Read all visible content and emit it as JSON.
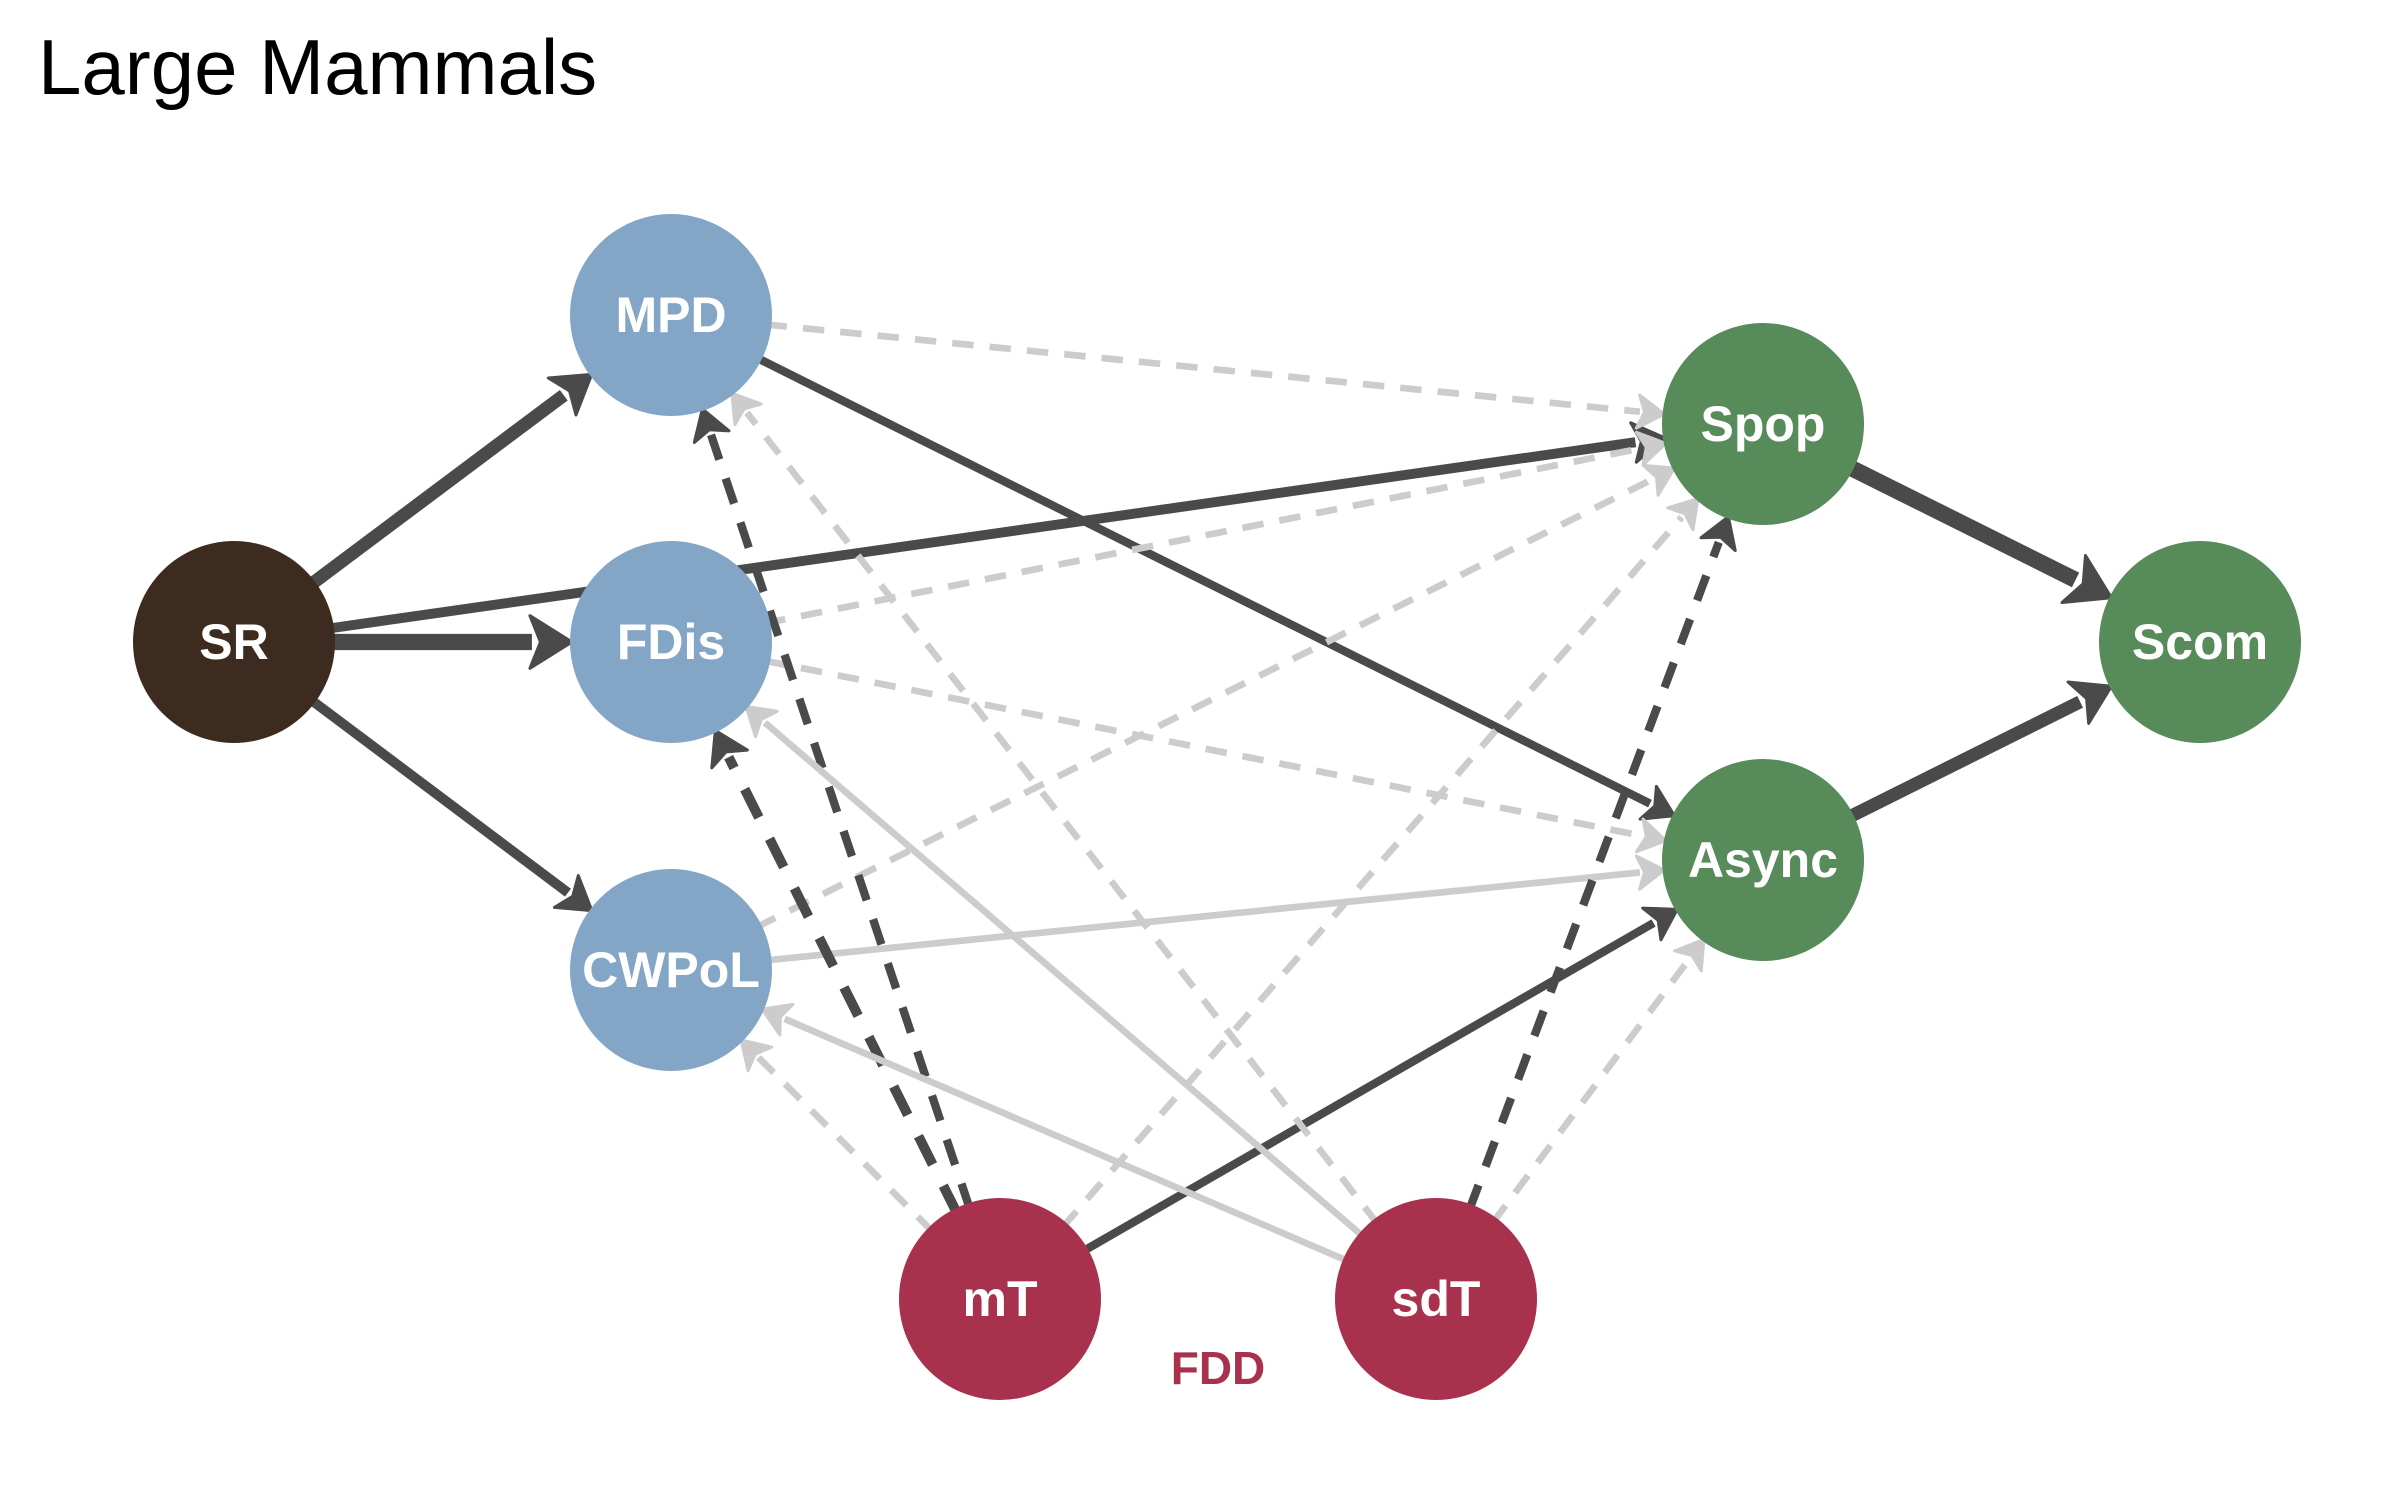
{
  "title": "Large Mammals",
  "colors": {
    "sr": "#3d2b1f",
    "fdiv": "#84a6c6",
    "stability": "#578b59",
    "climate": "#a8324d",
    "edge_dark": "#4a4a4a",
    "edge_light": "#cccccc"
  },
  "nodes": [
    {
      "id": "MPD",
      "label": "MPD",
      "group": "fdiv"
    },
    {
      "id": "FDis",
      "label": "FDis",
      "group": "fdiv"
    },
    {
      "id": "CWPoL",
      "label": "CWPoL",
      "group": "fdiv"
    },
    {
      "id": "SR",
      "label": "SR",
      "group": "sr"
    },
    {
      "id": "Spop",
      "label": "Spop",
      "group": "stability"
    },
    {
      "id": "Async",
      "label": "Async",
      "group": "stability"
    },
    {
      "id": "Scom",
      "label": "Scom",
      "group": "stability"
    },
    {
      "id": "mT",
      "label": "mT",
      "group": "climate"
    },
    {
      "id": "sdT",
      "label": "sdT",
      "group": "climate"
    }
  ],
  "group_label": {
    "text": "FDD",
    "color": "#a8324d"
  },
  "edges": [
    {
      "from": "SR",
      "to": "MPD",
      "significant": true,
      "dashed": false,
      "weight": 3
    },
    {
      "from": "SR",
      "to": "FDis",
      "significant": true,
      "dashed": false,
      "weight": 4
    },
    {
      "from": "SR",
      "to": "CWPoL",
      "significant": true,
      "dashed": false,
      "weight": 2
    },
    {
      "from": "SR",
      "to": "Spop",
      "significant": true,
      "dashed": false,
      "weight": 2
    },
    {
      "from": "MPD",
      "to": "Async",
      "significant": true,
      "dashed": false,
      "weight": 1.5
    },
    {
      "from": "MPD",
      "to": "Spop",
      "significant": false,
      "dashed": true,
      "weight": 1
    },
    {
      "from": "FDis",
      "to": "Spop",
      "significant": false,
      "dashed": true,
      "weight": 1
    },
    {
      "from": "FDis",
      "to": "Async",
      "significant": false,
      "dashed": true,
      "weight": 1
    },
    {
      "from": "CWPoL",
      "to": "Spop",
      "significant": false,
      "dashed": true,
      "weight": 1
    },
    {
      "from": "CWPoL",
      "to": "Async",
      "significant": false,
      "dashed": false,
      "weight": 1
    },
    {
      "from": "Spop",
      "to": "Scom",
      "significant": true,
      "dashed": false,
      "weight": 4
    },
    {
      "from": "Async",
      "to": "Scom",
      "significant": true,
      "dashed": false,
      "weight": 3
    },
    {
      "from": "mT",
      "to": "MPD",
      "significant": true,
      "dashed": true,
      "weight": 1.5
    },
    {
      "from": "mT",
      "to": "FDis",
      "significant": true,
      "dashed": true,
      "weight": 2
    },
    {
      "from": "mT",
      "to": "CWPoL",
      "significant": false,
      "dashed": true,
      "weight": 1
    },
    {
      "from": "mT",
      "to": "Spop",
      "significant": false,
      "dashed": true,
      "weight": 1
    },
    {
      "from": "mT",
      "to": "Async",
      "significant": true,
      "dashed": false,
      "weight": 1.5
    },
    {
      "from": "sdT",
      "to": "MPD",
      "significant": false,
      "dashed": true,
      "weight": 1
    },
    {
      "from": "sdT",
      "to": "FDis",
      "significant": false,
      "dashed": false,
      "weight": 1
    },
    {
      "from": "sdT",
      "to": "CWPoL",
      "significant": false,
      "dashed": false,
      "weight": 1
    },
    {
      "from": "sdT",
      "to": "Spop",
      "significant": true,
      "dashed": true,
      "weight": 1.5
    },
    {
      "from": "sdT",
      "to": "Async",
      "significant": false,
      "dashed": true,
      "weight": 1
    }
  ]
}
